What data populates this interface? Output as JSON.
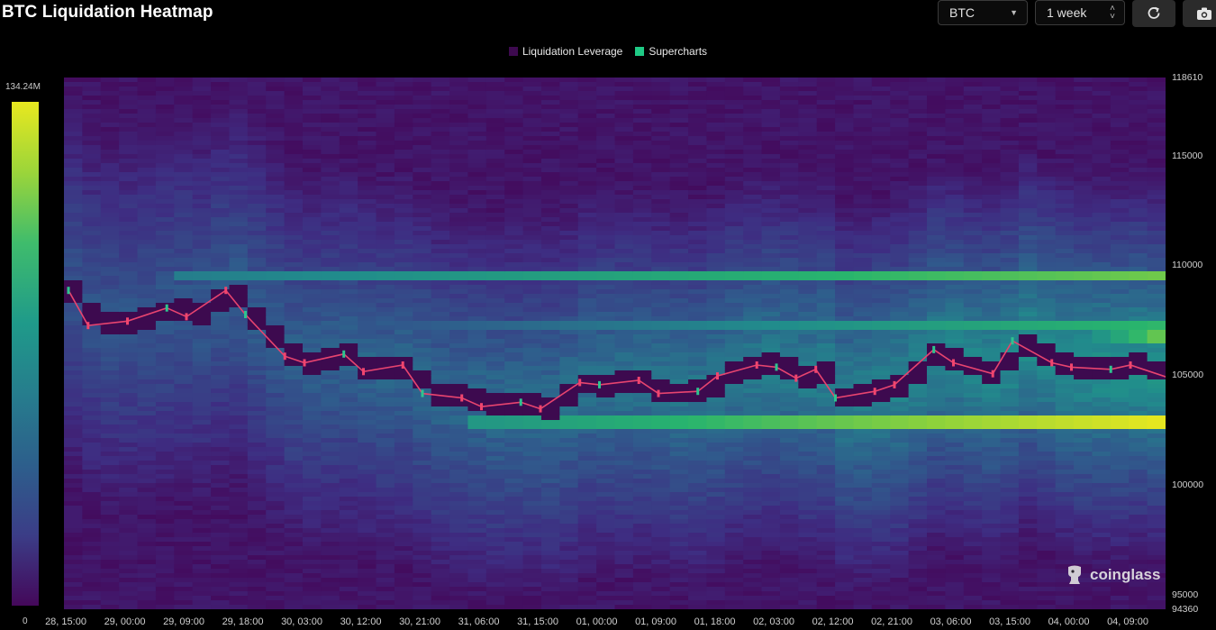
{
  "header": {
    "title": "BTC Liquidation Heatmap"
  },
  "controls": {
    "symbol": "BTC",
    "range": "1 week",
    "refresh_icon": "refresh-icon",
    "camera_icon": "camera-icon"
  },
  "legend": [
    {
      "label": "Liquidation Leverage",
      "color": "#3d0a4f"
    },
    {
      "label": "Supercharts",
      "color": "#1fca85"
    }
  ],
  "colorbar": {
    "max_label": "134.24M",
    "min_label": "0"
  },
  "brand": "coinglass",
  "chart_data": {
    "type": "heatmap",
    "title": "BTC Liquidation Heatmap",
    "colorscale": {
      "min": 0,
      "max": 134240000,
      "max_label": "134.24M"
    },
    "ylim": [
      94360,
      118610
    ],
    "y_tick_labels": [
      "118610",
      "115000",
      "110000",
      "105000",
      "100000",
      "95000",
      "94360"
    ],
    "x_tick_labels": [
      "28, 15:00",
      "29, 00:00",
      "29, 09:00",
      "29, 18:00",
      "30, 03:00",
      "30, 12:00",
      "30, 21:00",
      "31, 06:00",
      "31, 15:00",
      "01, 00:00",
      "01, 09:00",
      "01, 18:00",
      "02, 03:00",
      "02, 12:00",
      "02, 21:00",
      "03, 06:00",
      "03, 15:00",
      "04, 00:00",
      "04, 09:00"
    ],
    "liquidation_bands": [
      {
        "price": 102900,
        "intensity_from": 0.55,
        "intensity_to": 1.0,
        "starts": "31, 06:00"
      },
      {
        "price": 109600,
        "intensity_from": 0.45,
        "intensity_to": 0.8,
        "starts": "29, 09:00"
      },
      {
        "price": 107300,
        "intensity_from": 0.3,
        "intensity_to": 0.7,
        "starts": "30, 12:00"
      },
      {
        "price": 106800,
        "intensity_from": 0.2,
        "intensity_to": 0.85,
        "starts": "03, 15:00"
      }
    ],
    "price_series": [
      {
        "x": "28, 15:00",
        "y": 108900
      },
      {
        "x": "28, 18:00",
        "y": 107300
      },
      {
        "x": "29, 00:00",
        "y": 107500
      },
      {
        "x": "29, 06:00",
        "y": 108100
      },
      {
        "x": "29, 09:00",
        "y": 107700
      },
      {
        "x": "29, 15:00",
        "y": 108900
      },
      {
        "x": "29, 18:00",
        "y": 107800
      },
      {
        "x": "30, 00:00",
        "y": 105900
      },
      {
        "x": "30, 03:00",
        "y": 105600
      },
      {
        "x": "30, 09:00",
        "y": 106000
      },
      {
        "x": "30, 12:00",
        "y": 105200
      },
      {
        "x": "30, 18:00",
        "y": 105500
      },
      {
        "x": "30, 21:00",
        "y": 104200
      },
      {
        "x": "31, 03:00",
        "y": 104000
      },
      {
        "x": "31, 06:00",
        "y": 103600
      },
      {
        "x": "31, 12:00",
        "y": 103800
      },
      {
        "x": "31, 15:00",
        "y": 103500
      },
      {
        "x": "31, 21:00",
        "y": 104700
      },
      {
        "x": "01, 00:00",
        "y": 104600
      },
      {
        "x": "01, 06:00",
        "y": 104800
      },
      {
        "x": "01, 09:00",
        "y": 104200
      },
      {
        "x": "01, 15:00",
        "y": 104300
      },
      {
        "x": "01, 18:00",
        "y": 105000
      },
      {
        "x": "02, 00:00",
        "y": 105500
      },
      {
        "x": "02, 03:00",
        "y": 105400
      },
      {
        "x": "02, 06:00",
        "y": 104900
      },
      {
        "x": "02, 09:00",
        "y": 105300
      },
      {
        "x": "02, 12:00",
        "y": 104000
      },
      {
        "x": "02, 18:00",
        "y": 104300
      },
      {
        "x": "02, 21:00",
        "y": 104600
      },
      {
        "x": "03, 03:00",
        "y": 106200
      },
      {
        "x": "03, 06:00",
        "y": 105600
      },
      {
        "x": "03, 12:00",
        "y": 105100
      },
      {
        "x": "03, 15:00",
        "y": 106600
      },
      {
        "x": "03, 21:00",
        "y": 105600
      },
      {
        "x": "04, 00:00",
        "y": 105400
      },
      {
        "x": "04, 06:00",
        "y": 105300
      },
      {
        "x": "04, 09:00",
        "y": 105500
      },
      {
        "x": "04, 15:00",
        "y": 104900
      }
    ]
  }
}
